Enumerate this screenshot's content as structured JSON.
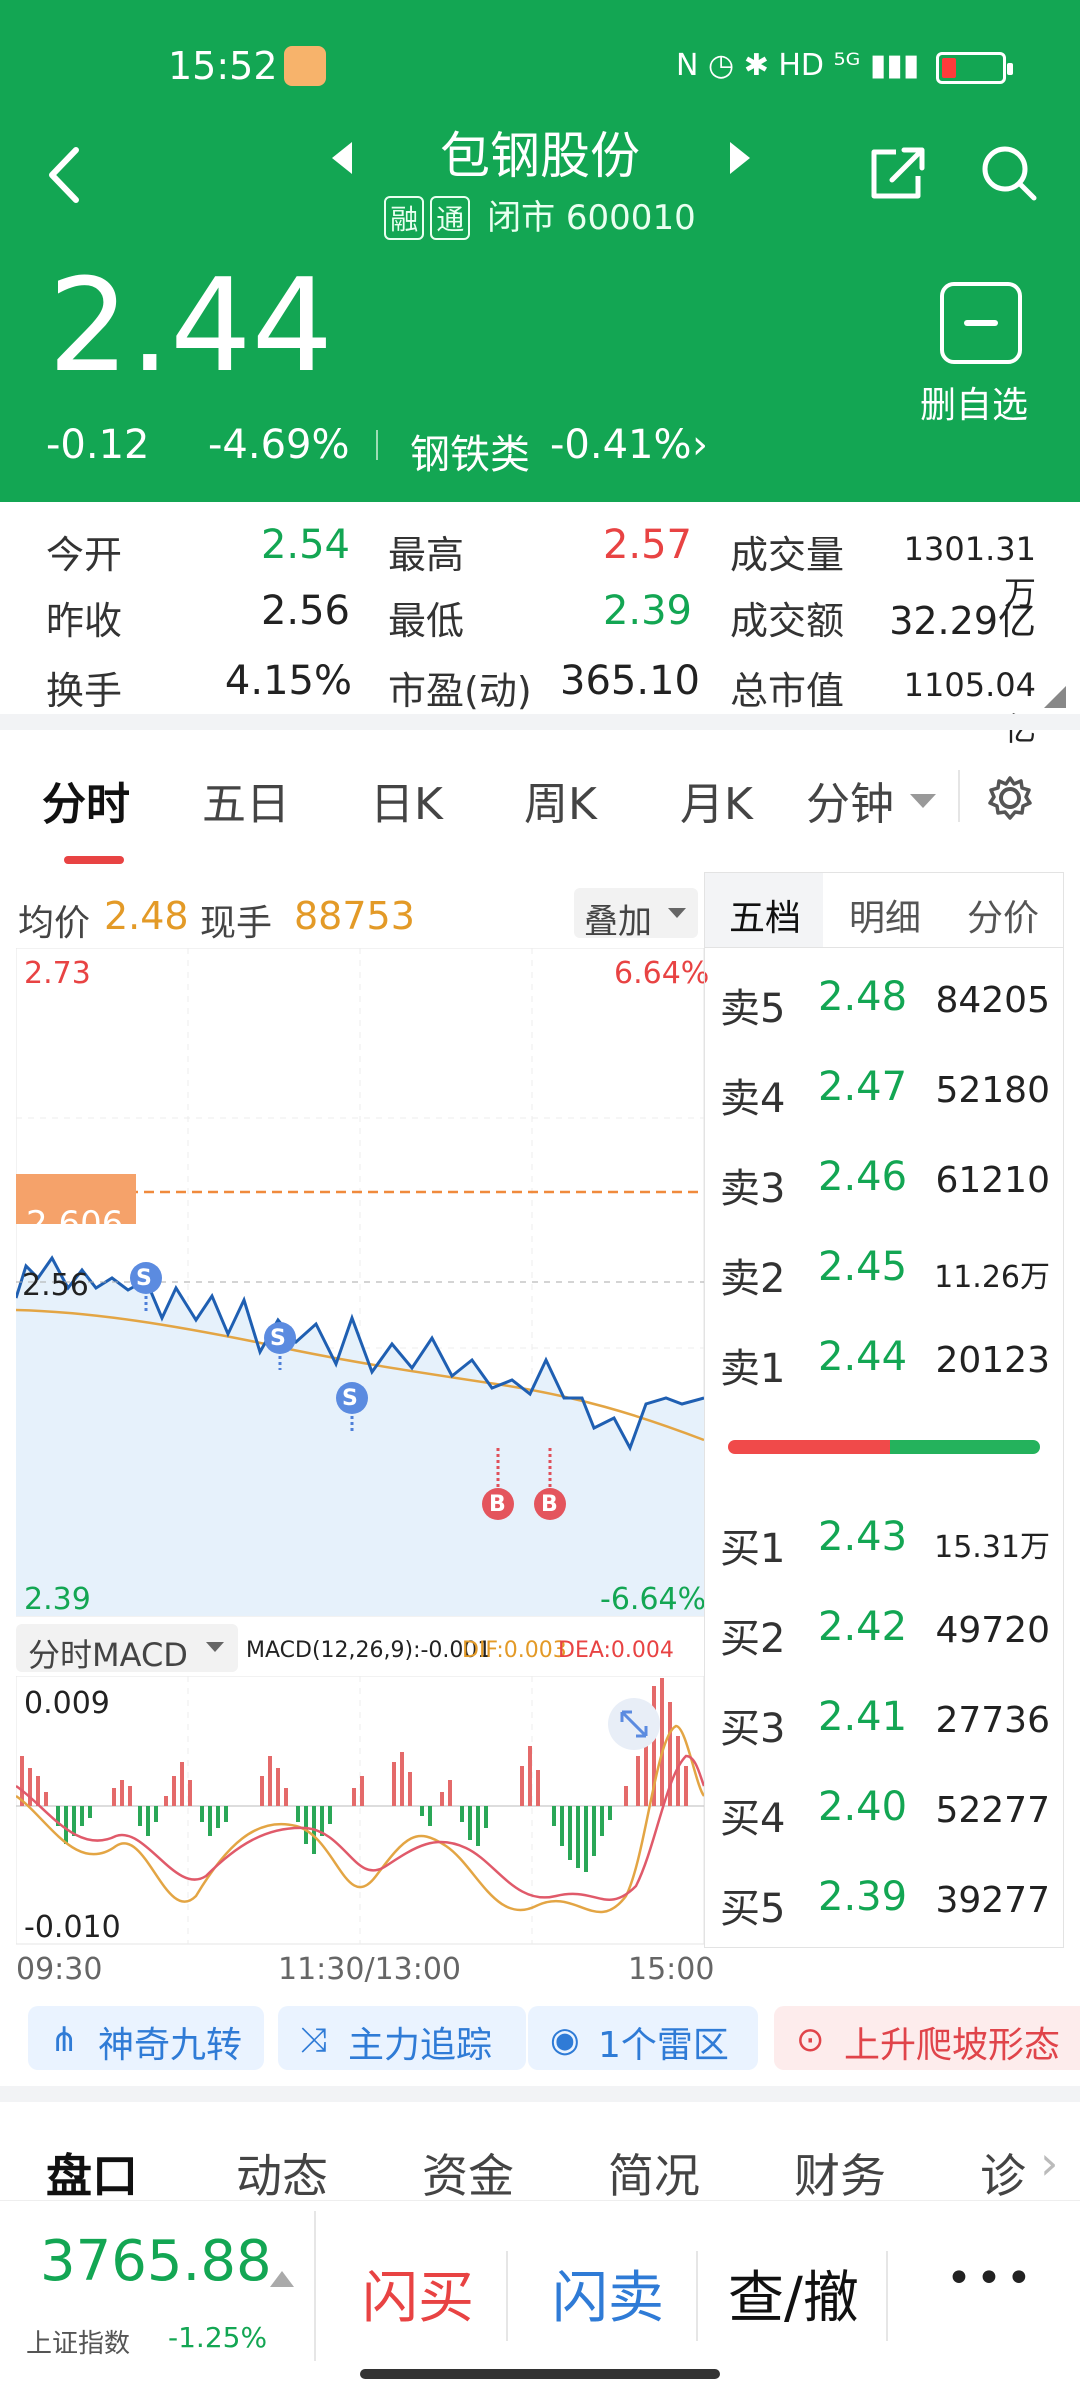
{
  "status_bar": {
    "time": "15:52",
    "icons": "N ◷ ✱ HD ⁵ᴳ ▮▮▮"
  },
  "header": {
    "title": "包钢股份",
    "tag_margin": "融",
    "tag_connect": "通",
    "status": "闭市 600010",
    "price": "2.44",
    "change": "-0.12",
    "change_pct": "-4.69%",
    "sector": "钢铁类",
    "sector_pct": "-0.41%",
    "watch_label": "删自选"
  },
  "stats": {
    "open_label": "今开",
    "open": "2.54",
    "high_label": "最高",
    "high": "2.57",
    "vol_label": "成交量",
    "vol": "1301.31万",
    "prev_label": "昨收",
    "prev": "2.56",
    "low_label": "最低",
    "low": "2.39",
    "amount_label": "成交额",
    "amount": "32.29亿",
    "turnover_label": "换手",
    "turnover": "4.15%",
    "pe_label": "市盈(动)",
    "pe": "365.10",
    "mcap_label": "总市值",
    "mcap": "1105.04亿"
  },
  "tabs": [
    "分时",
    "五日",
    "日K",
    "周K",
    "月K",
    "分钟"
  ],
  "intraday": {
    "avg_label": "均价",
    "avg": "2.48",
    "hand_label": "现手",
    "hand": "88753",
    "overlay": "叠加",
    "top_price": "2.73",
    "top_pct": "6.64%",
    "bottom_price": "2.39",
    "bottom_pct": "-6.64%",
    "ref_price": "2.56",
    "alert_price": "2.606",
    "macd_selector": "分时MACD",
    "macd_params": "MACD(12,26,9):-0.001",
    "dif": "DIF:0.003",
    "dea": "DEA:0.004",
    "macd_top": "0.009",
    "macd_bottom": "-0.010",
    "time_start": "09:30",
    "time_mid": "11:30/13:00",
    "time_end": "15:00",
    "signals": [
      "S",
      "S",
      "S",
      "B",
      "B"
    ]
  },
  "orderbook": {
    "tabs": [
      "五档",
      "明细",
      "分价"
    ],
    "asks": [
      {
        "label": "卖5",
        "price": "2.48",
        "vol": "84205"
      },
      {
        "label": "卖4",
        "price": "2.47",
        "vol": "52180"
      },
      {
        "label": "卖3",
        "price": "2.46",
        "vol": "61210"
      },
      {
        "label": "卖2",
        "price": "2.45",
        "vol": "11.26万"
      },
      {
        "label": "卖1",
        "price": "2.44",
        "vol": "20123"
      }
    ],
    "bids": [
      {
        "label": "买1",
        "price": "2.43",
        "vol": "15.31万"
      },
      {
        "label": "买2",
        "price": "2.42",
        "vol": "49720"
      },
      {
        "label": "买3",
        "price": "2.41",
        "vol": "27736"
      },
      {
        "label": "买4",
        "price": "2.40",
        "vol": "52277"
      },
      {
        "label": "买5",
        "price": "2.39",
        "vol": "39277"
      }
    ]
  },
  "features": [
    "神奇九转",
    "主力追踪",
    "1个雷区",
    "上升爬坡形态"
  ],
  "bottom_tabs": [
    "盘口",
    "动态",
    "资金",
    "简况",
    "财务",
    "诊"
  ],
  "footer": {
    "index_value": "3765.88",
    "index_name": "上证指数",
    "index_pct": "-1.25%",
    "buy": "闪买",
    "sell": "闪卖",
    "cancel": "查/撤",
    "more": "•••"
  }
}
